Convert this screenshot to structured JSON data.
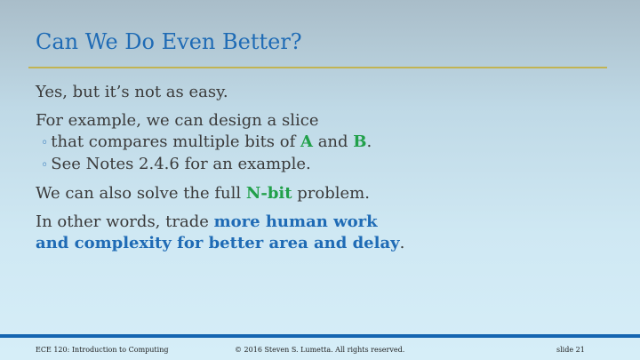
{
  "slide": {
    "title": "Can We Do Even Better?",
    "line1": "Yes, but it’s not as easy.",
    "line2": "For example, we can design a slice",
    "sub1_pre": "that compares multiple bits of ",
    "sub1_a": "A",
    "sub1_and": " and ",
    "sub1_b": "B",
    "sub1_end": ".",
    "sub2": "See Notes 2.4.6 for an example.",
    "line3_pre": "We can also solve the full ",
    "line3_em": "N-bit",
    "line3_post": " problem.",
    "line4_pre": "In other words, trade ",
    "line4_em1": "more human work",
    "line4_em2": "and complexity for better area and delay",
    "line4_end": ".",
    "bullet_glyph": "◦"
  },
  "footer": {
    "course": "ECE 120: Introduction to Computing",
    "copyright": "© 2016 Steven S. Lumetta.  All rights reserved.",
    "slide_number": "slide 21"
  },
  "colors": {
    "title": "#1f6bb5",
    "accent_green": "#21a04a",
    "accent_blue": "#1f6bb5",
    "rule": "#c2b453",
    "footer_bar": "#1565b1"
  }
}
